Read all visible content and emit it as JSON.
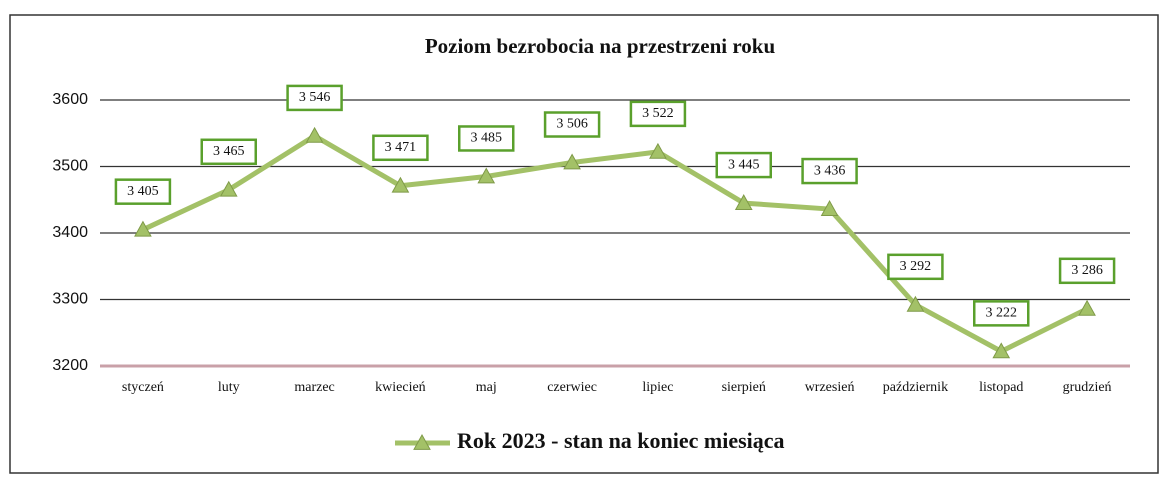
{
  "chart_data": {
    "type": "line",
    "title": "Poziom bezrobocia na przestrzeni roku",
    "categories": [
      "styczeń",
      "luty",
      "marzec",
      "kwiecień",
      "maj",
      "czerwiec",
      "lipiec",
      "sierpień",
      "wrzesień",
      "październik",
      "listopad",
      "grudzień"
    ],
    "series": [
      {
        "name": "Rok 2023 - stan na koniec miesiąca",
        "color": "#a3c167",
        "values": [
          3405,
          3465,
          3546,
          3471,
          3485,
          3506,
          3522,
          3445,
          3436,
          3292,
          3222,
          3286
        ],
        "value_labels": [
          "3 405",
          "3 465",
          "3 546",
          "3 471",
          "3 485",
          "3 506",
          "3 522",
          "3 445",
          "3 436",
          "3 292",
          "3 222",
          "3 286"
        ]
      }
    ],
    "ylim": [
      3200,
      3600
    ],
    "yticks": [
      3200,
      3300,
      3400,
      3500,
      3600
    ],
    "grid": true,
    "legend": "bottom"
  }
}
